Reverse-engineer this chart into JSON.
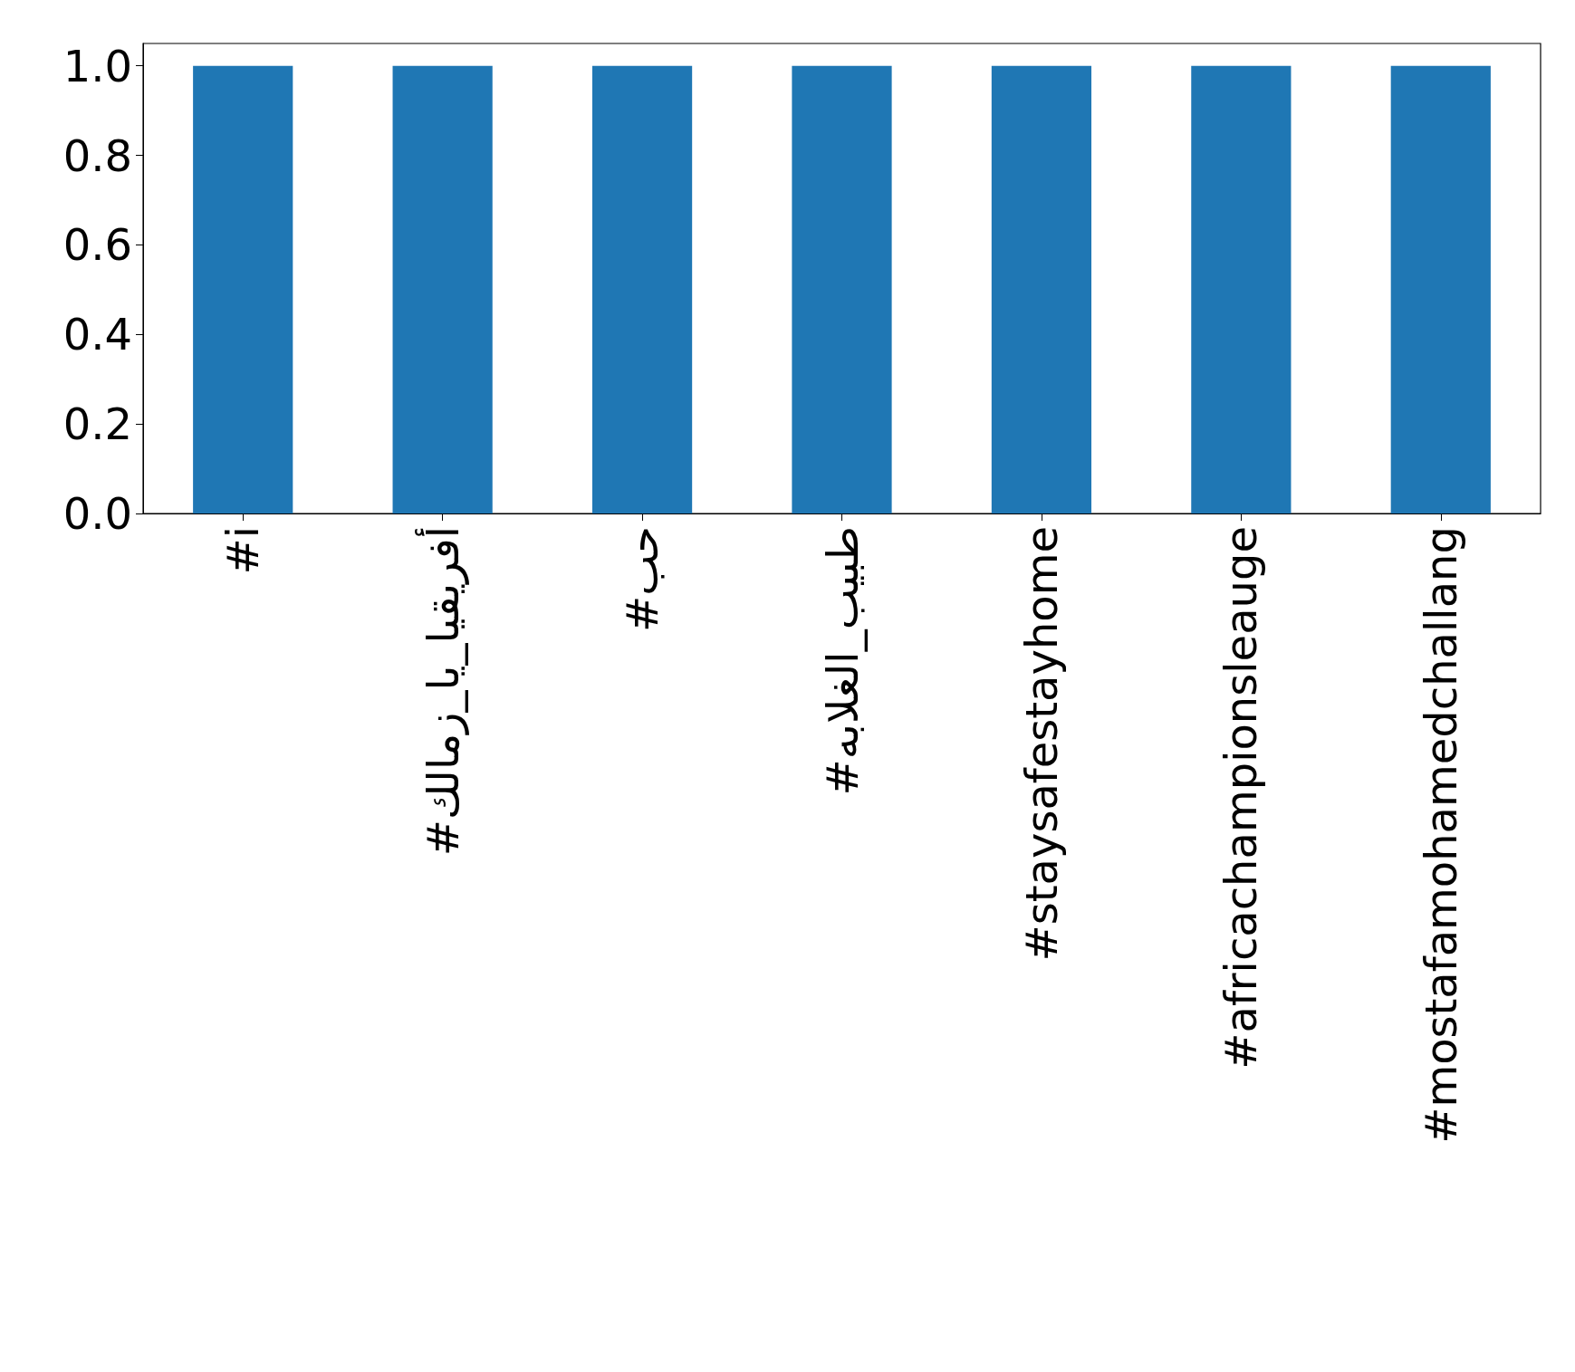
{
  "chart_data": {
    "type": "bar",
    "categories": [
      "#i",
      "#أفريقيا_يا_زمالك",
      "#حب",
      "#طبيب_الغلابه",
      "#staysafestayhome",
      "#africachampionsleauge",
      "#mostafamohamedchallang"
    ],
    "values": [
      1,
      1,
      1,
      1,
      1,
      1,
      1
    ],
    "color": "#1f77b4",
    "ylim": [
      0,
      1.05
    ],
    "yticks": [
      {
        "value": 0,
        "label": "0.0"
      },
      {
        "value": 0.2,
        "label": "0.2"
      },
      {
        "value": 0.4,
        "label": "0.4"
      },
      {
        "value": 0.6,
        "label": "0.6"
      },
      {
        "value": 0.8,
        "label": "0.8"
      },
      {
        "value": 1,
        "label": "1.0"
      }
    ],
    "grid": false
  }
}
